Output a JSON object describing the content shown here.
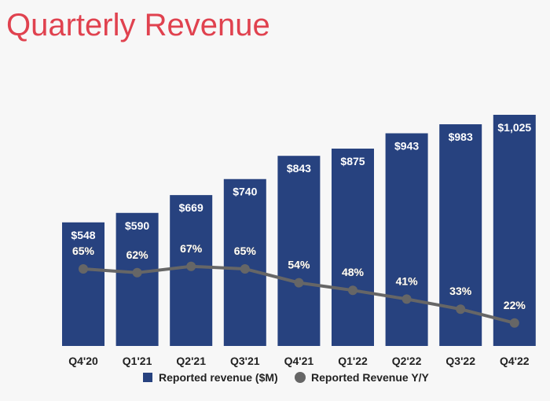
{
  "chart_data": {
    "type": "bar",
    "title": "Quarterly Revenue",
    "xlabel": "",
    "ylabel": "",
    "categories": [
      "Q4'20",
      "Q1'21",
      "Q2'21",
      "Q3'21",
      "Q4'21",
      "Q1'22",
      "Q2'22",
      "Q3'22",
      "Q4'22"
    ],
    "ylim": [
      0,
      1100
    ],
    "grid": false,
    "legend_position": "bottom",
    "series": [
      {
        "name": "Reported revenue ($M)",
        "type": "bar",
        "color": "#27427f",
        "values": [
          548,
          590,
          669,
          740,
          843,
          875,
          943,
          983,
          1025
        ],
        "labels": [
          "$548",
          "$590",
          "$669",
          "$740",
          "$843",
          "$875",
          "$943",
          "$983",
          "$1,025"
        ]
      },
      {
        "name": "Reported Revenue Y/Y",
        "type": "line",
        "color": "#666666",
        "values": [
          65,
          62,
          67,
          65,
          54,
          48,
          41,
          33,
          22
        ],
        "labels": [
          "65%",
          "62%",
          "67%",
          "65%",
          "54%",
          "48%",
          "41%",
          "33%",
          "22%"
        ]
      }
    ]
  }
}
